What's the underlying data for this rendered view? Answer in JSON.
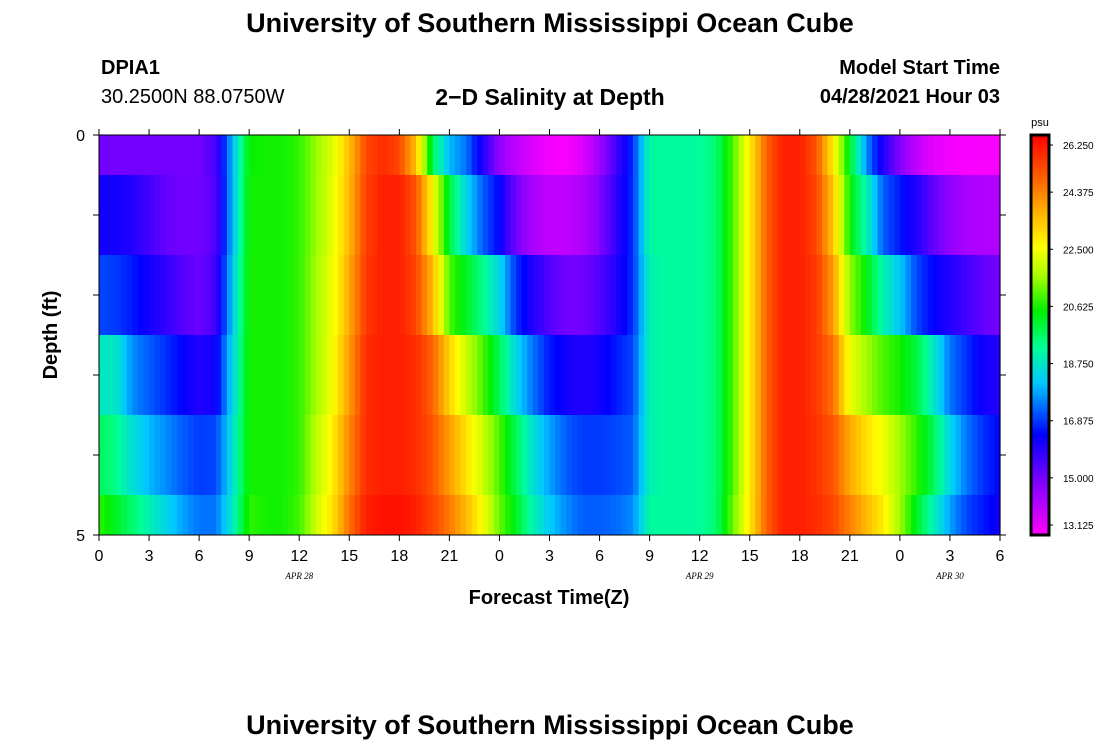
{
  "header": {
    "title": "University of Southern Mississippi Ocean Cube",
    "station_id": "DPIA1",
    "station_coords": "30.2500N  88.0750W",
    "subtitle": "2−D Salinity at Depth",
    "model_label": "Model Start Time",
    "model_time": "04/28/2021 Hour 03"
  },
  "footer": {
    "title": "University of Southern Mississippi Ocean Cube"
  },
  "chart_data": {
    "type": "heatmap",
    "title": "2−D Salinity at Depth",
    "xlabel": "Forecast Time(Z)",
    "ylabel": "Depth (ft)",
    "x_hours": [
      0,
      1,
      2,
      3,
      4,
      5,
      6,
      7,
      8,
      9,
      10,
      11,
      12,
      13,
      14,
      15,
      16,
      17,
      18,
      19,
      20,
      21,
      22,
      23,
      24,
      25,
      26,
      27,
      28,
      29,
      30,
      31,
      32,
      33,
      34,
      35,
      36,
      37,
      38,
      39,
      40,
      41,
      42,
      43,
      44,
      45,
      46,
      47,
      48,
      49,
      50,
      51,
      52,
      53,
      54
    ],
    "x_tick_labels": [
      "0",
      "3",
      "6",
      "9",
      "12",
      "15",
      "18",
      "21",
      "0",
      "3",
      "6",
      "9",
      "12",
      "15",
      "18",
      "21",
      "0",
      "3",
      "6"
    ],
    "date_labels": [
      {
        "label": "APR  28",
        "hour": 12
      },
      {
        "label": "APR  29",
        "hour": 36
      },
      {
        "label": "APR  30",
        "hour": 51
      }
    ],
    "y_range": [
      0,
      5
    ],
    "y_tick_labels": [
      "0",
      "5"
    ],
    "depth_layers": [
      "0–0.5",
      "0.5–1.5",
      "1.5–2.5",
      "2.5–3.5",
      "3.5–4.5",
      "4.5–5"
    ],
    "salinity": [
      [
        15.0,
        15.0,
        15.0,
        15.0,
        15.0,
        15.0,
        15.0,
        15.5,
        18.0,
        20.5,
        20.6,
        20.6,
        20.8,
        21.5,
        22.2,
        23.5,
        25.2,
        25.6,
        25.2,
        23.5,
        19.8,
        18.0,
        17.4,
        16.0,
        14.6,
        14.0,
        13.6,
        13.3,
        13.2,
        13.6,
        14.4,
        15.6,
        16.8,
        19.2,
        19.2,
        19.2,
        19.2,
        19.6,
        21.0,
        22.8,
        24.8,
        25.8,
        25.8,
        25.0,
        22.8,
        20.2,
        17.6,
        16.0,
        14.8,
        14.0,
        13.5,
        13.3,
        13.2,
        13.2,
        13.2
      ],
      [
        16.2,
        16.2,
        16.0,
        15.6,
        15.2,
        15.0,
        15.0,
        15.4,
        18.0,
        20.6,
        20.6,
        20.6,
        20.8,
        21.5,
        22.3,
        23.6,
        25.3,
        25.8,
        25.8,
        25.0,
        22.6,
        20.0,
        18.4,
        17.2,
        16.4,
        15.0,
        14.3,
        14.0,
        14.0,
        14.2,
        14.8,
        15.8,
        16.8,
        19.2,
        19.2,
        19.2,
        19.2,
        19.6,
        21.0,
        22.8,
        24.8,
        25.8,
        25.8,
        25.2,
        23.4,
        20.5,
        19.0,
        17.2,
        16.6,
        16.0,
        15.2,
        14.6,
        14.3,
        14.2,
        14.2
      ],
      [
        17.0,
        16.9,
        16.6,
        16.2,
        15.8,
        15.4,
        15.1,
        15.6,
        18.2,
        20.6,
        20.6,
        20.6,
        20.8,
        21.6,
        22.4,
        23.8,
        25.4,
        25.8,
        25.8,
        25.2,
        23.6,
        21.0,
        20.2,
        19.4,
        18.4,
        16.8,
        16.0,
        15.4,
        15.0,
        15.0,
        15.4,
        16.0,
        16.8,
        19.0,
        19.2,
        19.2,
        19.2,
        19.6,
        21.0,
        22.8,
        24.8,
        25.8,
        25.8,
        25.4,
        24.0,
        21.5,
        20.4,
        19.0,
        18.2,
        17.0,
        16.4,
        16.0,
        15.6,
        15.2,
        15.0
      ],
      [
        18.8,
        18.8,
        17.6,
        17.2,
        16.8,
        16.4,
        16.0,
        16.2,
        18.4,
        20.6,
        20.6,
        20.6,
        20.8,
        21.6,
        22.5,
        24.0,
        25.6,
        25.8,
        25.8,
        25.6,
        24.8,
        23.2,
        22.0,
        21.0,
        19.8,
        18.4,
        17.4,
        16.6,
        16.2,
        16.0,
        16.2,
        16.6,
        17.0,
        19.0,
        19.2,
        19.2,
        19.2,
        19.6,
        21.0,
        22.8,
        24.8,
        25.8,
        25.8,
        25.4,
        24.6,
        22.4,
        21.6,
        21.0,
        20.6,
        20.0,
        18.8,
        17.4,
        16.8,
        16.2,
        16.0
      ],
      [
        19.8,
        19.4,
        18.6,
        18.0,
        17.6,
        17.2,
        16.9,
        17.0,
        18.6,
        20.6,
        20.6,
        20.6,
        20.8,
        21.8,
        22.8,
        24.3,
        25.6,
        25.8,
        25.8,
        25.6,
        25.0,
        24.0,
        23.0,
        22.0,
        21.0,
        19.8,
        18.6,
        17.8,
        17.2,
        16.9,
        16.9,
        17.0,
        17.2,
        19.0,
        19.2,
        19.2,
        19.2,
        19.6,
        21.0,
        22.8,
        24.8,
        25.8,
        25.8,
        25.5,
        25.0,
        23.8,
        23.0,
        22.4,
        21.6,
        20.8,
        19.8,
        18.4,
        17.4,
        16.8,
        16.4
      ],
      [
        20.8,
        20.2,
        19.6,
        19.0,
        18.4,
        17.8,
        17.4,
        17.4,
        18.8,
        20.8,
        20.6,
        20.6,
        20.9,
        22.0,
        23.0,
        24.6,
        25.8,
        26.0,
        26.0,
        25.8,
        25.2,
        24.5,
        23.6,
        22.5,
        21.2,
        20.2,
        19.0,
        18.2,
        17.6,
        17.2,
        17.2,
        17.3,
        17.6,
        19.2,
        19.2,
        19.2,
        19.2,
        19.6,
        21.2,
        22.9,
        24.8,
        25.8,
        25.8,
        25.6,
        25.2,
        24.4,
        23.6,
        22.8,
        21.6,
        20.2,
        19.0,
        17.8,
        17.0,
        16.6,
        16.2
      ]
    ],
    "colorbar": {
      "unit": "psu",
      "range": [
        13.125,
        26.25
      ],
      "tick_labels": [
        "26.250",
        "24.375",
        "22.500",
        "20.625",
        "18.750",
        "16.875",
        "15.000",
        "13.125"
      ],
      "tick_values": [
        26.25,
        24.375,
        22.5,
        20.625,
        18.75,
        16.875,
        15.0,
        13.125
      ]
    }
  }
}
